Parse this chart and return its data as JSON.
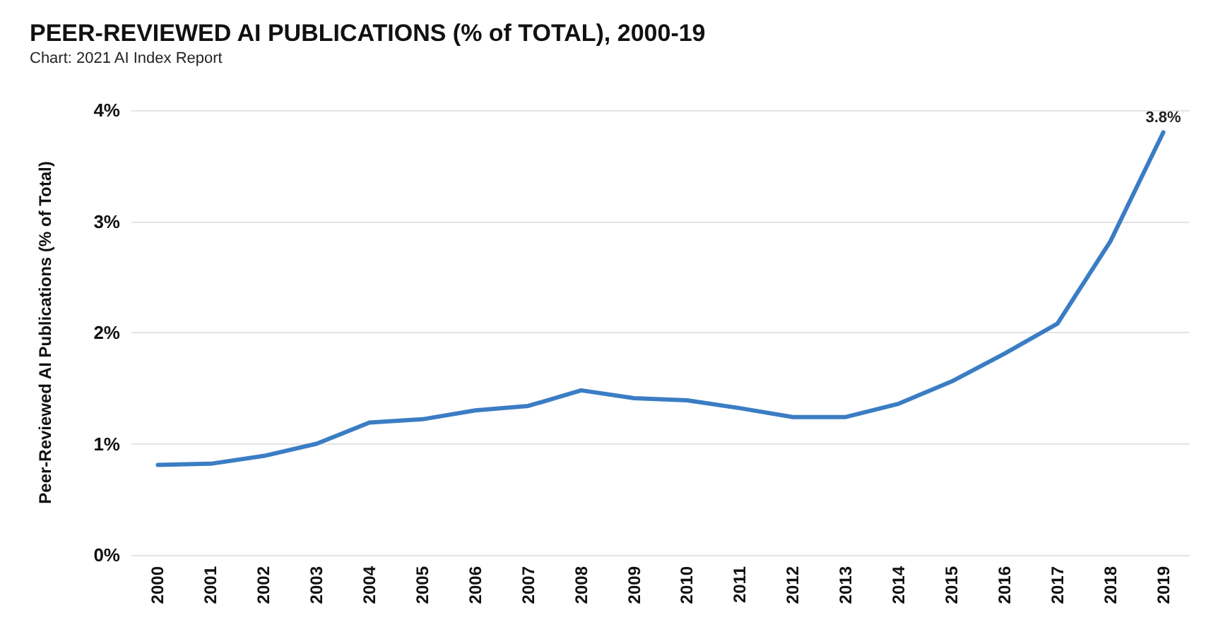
{
  "chart_data": {
    "type": "line",
    "title": "PEER-REVIEWED AI PUBLICATIONS (% of TOTAL), 2000-19",
    "subtitle": "Chart: 2021 AI Index Report",
    "ylabel": "Peer-Reviewed AI Publications (% of Total)",
    "categories": [
      "2000",
      "2001",
      "2002",
      "2003",
      "2004",
      "2005",
      "2006",
      "2007",
      "2008",
      "2009",
      "2010",
      "2011",
      "2012",
      "2013",
      "2014",
      "2015",
      "2016",
      "2017",
      "2018",
      "2019"
    ],
    "series": [
      {
        "color": "#3b7dc4",
        "values": [
          0.81,
          0.82,
          0.89,
          1.0,
          1.19,
          1.22,
          1.3,
          1.34,
          1.48,
          1.41,
          1.39,
          1.32,
          1.24,
          1.24,
          1.36,
          1.56,
          1.81,
          2.08,
          2.82,
          3.8
        ],
        "value_labels": [
          null,
          null,
          null,
          null,
          null,
          null,
          null,
          null,
          null,
          null,
          null,
          null,
          null,
          null,
          null,
          null,
          null,
          null,
          null,
          "3.8%"
        ]
      }
    ],
    "ylim": [
      0,
      4
    ],
    "yticks": [
      {
        "value": 0,
        "label": "0%"
      },
      {
        "value": 1,
        "label": "1%"
      },
      {
        "value": 2,
        "label": "2%"
      },
      {
        "value": 3,
        "label": "3%"
      },
      {
        "value": 4,
        "label": "4%"
      }
    ],
    "grid": "y",
    "marker": "none",
    "line_style": "solid"
  }
}
